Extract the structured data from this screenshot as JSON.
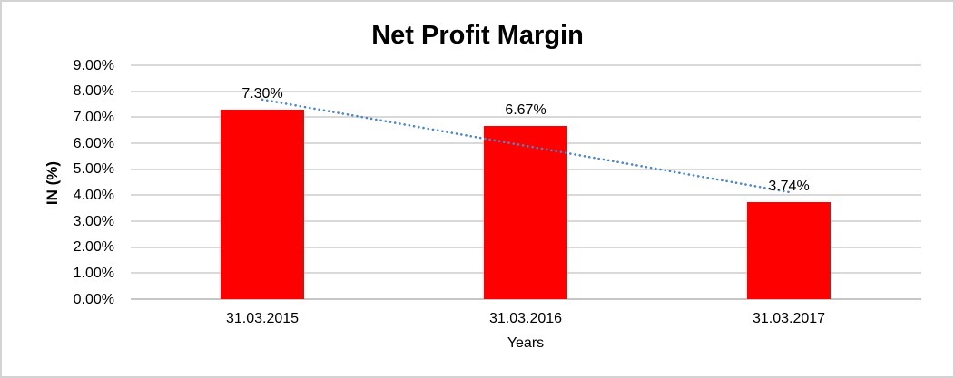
{
  "chart_data": {
    "type": "bar",
    "title": "Net Profit Margin",
    "categories": [
      "31.03.2015",
      "31.03.2016",
      "31.03.2017"
    ],
    "values": [
      7.3,
      6.67,
      3.74
    ],
    "data_labels": [
      "7.30%",
      "6.67%",
      "3.74%"
    ],
    "xlabel": "Years",
    "ylabel": "IN (%)",
    "ylim": [
      0,
      9
    ],
    "ytick_step": 1,
    "ytick_labels": [
      "0.00%",
      "1.00%",
      "2.00%",
      "3.00%",
      "4.00%",
      "5.00%",
      "6.00%",
      "7.00%",
      "8.00%",
      "9.00%"
    ],
    "grid": true,
    "legend": "none",
    "trendline": {
      "type": "linear",
      "style": "dotted",
      "values": [
        7.68,
        5.9,
        4.12
      ]
    },
    "colors": {
      "bar": "#ff0000",
      "trendline": "#4e86c8",
      "gridline": "#d9d9d9",
      "axis_line": "#c6c6c6",
      "text": "#000000",
      "frame_border": "#d3d3d3",
      "background": "#ffffff"
    }
  }
}
